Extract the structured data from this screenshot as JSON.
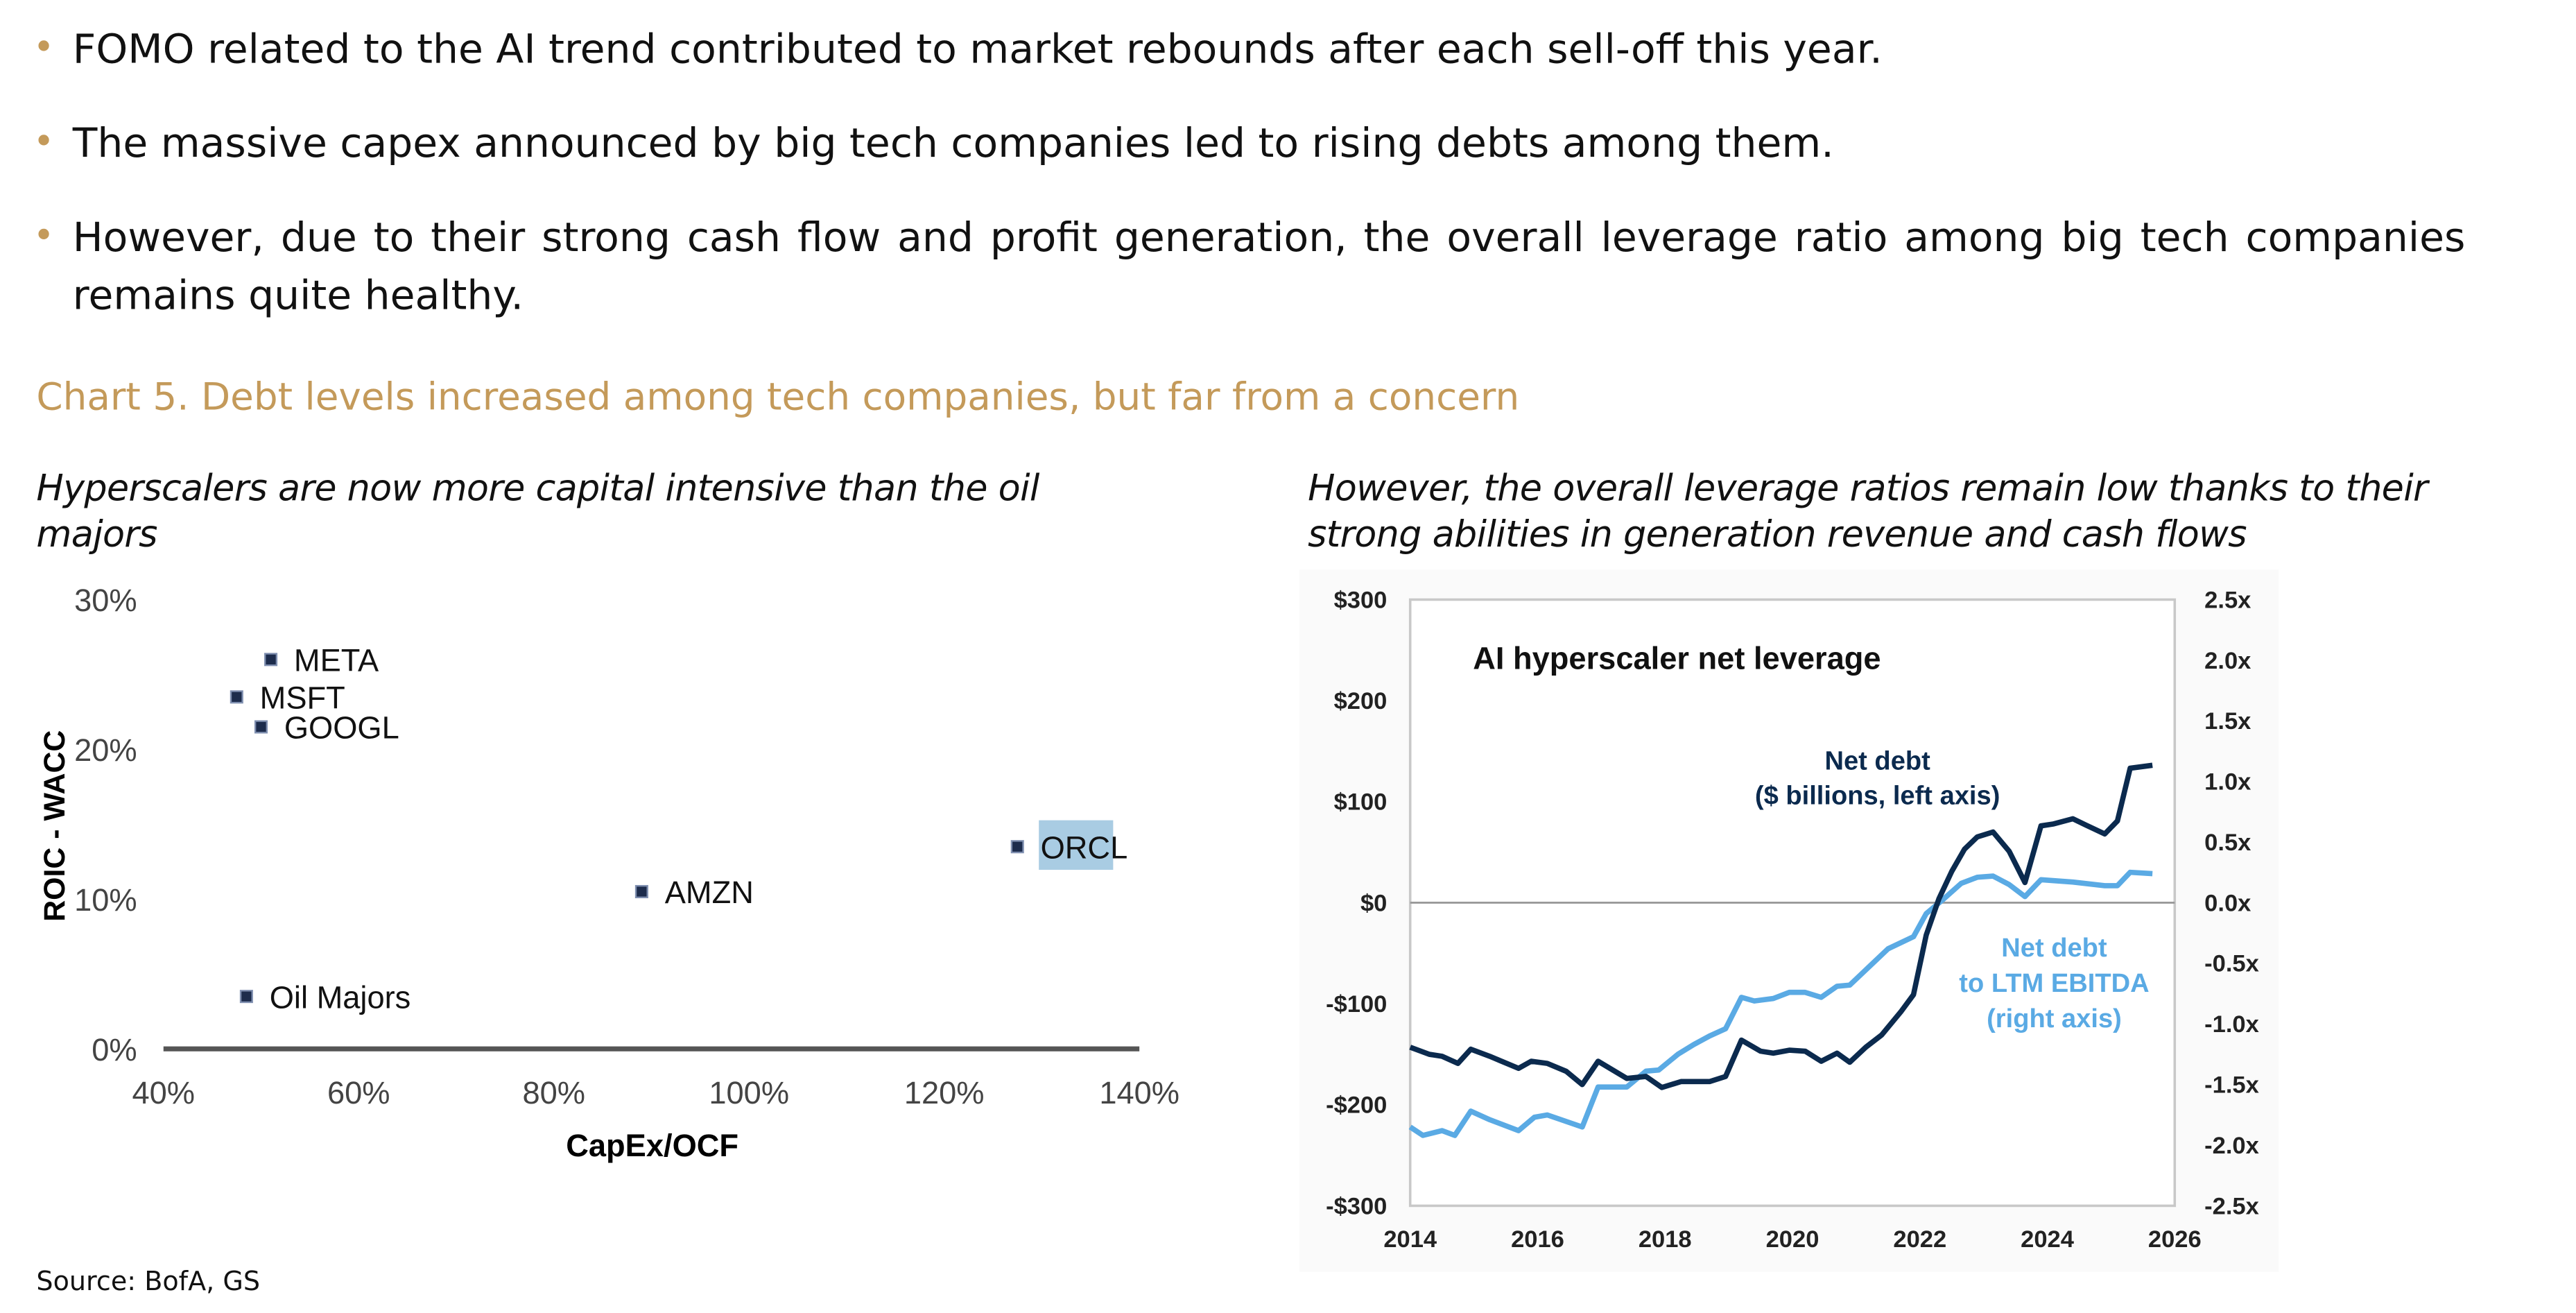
{
  "bullets": [
    "FOMO related to the AI trend contributed to market rebounds after each sell-off this year.",
    "The massive capex announced by big tech companies led to rising debts among them.",
    "However, due to their strong cash flow and profit generation, the overall leverage ratio among big tech companies remains quite healthy."
  ],
  "chart_title": "Chart 5. Debt levels increased among tech companies, but far from a concern",
  "left_subtitle": "Hyperscalers are now more capital intensive than the oil majors",
  "right_subtitle": "However, the overall leverage ratios remain low thanks to their strong abilities in generation revenue and cash flows",
  "source": "Source: BofA, GS",
  "colors": {
    "accent": "#c49a5a",
    "net_debt": "#0b2a4e",
    "leverage": "#5aaae4",
    "orcl_highlight": "#a9cce3"
  },
  "chart_data": [
    {
      "type": "scatter",
      "xlabel": "CapEx/OCF",
      "ylabel": "ROIC - WACC",
      "xlim": [
        40,
        140
      ],
      "ylim": [
        0,
        30
      ],
      "x_ticks": [
        "40%",
        "60%",
        "80%",
        "100%",
        "120%",
        "140%"
      ],
      "y_ticks": [
        "0%",
        "10%",
        "20%",
        "30%"
      ],
      "points": [
        {
          "label": "META",
          "x": 51,
          "y": 26
        },
        {
          "label": "MSFT",
          "x": 47.5,
          "y": 23.5
        },
        {
          "label": "GOOGL",
          "x": 50,
          "y": 21.5
        },
        {
          "label": "ORCL",
          "x": 127.5,
          "y": 13.5,
          "highlight": true
        },
        {
          "label": "AMZN",
          "x": 89,
          "y": 10.5
        },
        {
          "label": "Oil Majors",
          "x": 48.5,
          "y": 3.5
        }
      ]
    },
    {
      "type": "line",
      "title": "AI hyperscaler net leverage",
      "xlim": [
        2014,
        2026
      ],
      "ylim_left": [
        -300,
        300
      ],
      "ylim_right": [
        -2.5,
        2.5
      ],
      "x_ticks": [
        "2014",
        "2016",
        "2018",
        "2020",
        "2022",
        "2024",
        "2026"
      ],
      "y_ticks_left": [
        "$300",
        "$200",
        "$100",
        "$0",
        "-$100",
        "-$200",
        "-$300"
      ],
      "y_ticks_right": [
        "2.5x",
        "2.0x",
        "1.5x",
        "1.0x",
        "0.5x",
        "0.0x",
        "-0.5x",
        "-1.0x",
        "-1.5x",
        "-2.0x",
        "-2.5x"
      ],
      "series": [
        {
          "name": "Net debt ($ billions, left axis)",
          "label_lines": [
            "Net debt",
            "($ billions, left axis)"
          ],
          "axis": "left",
          "x": [
            2014.0,
            2014.3,
            2014.5,
            2014.75,
            2014.95,
            2015.25,
            2015.7,
            2015.9,
            2016.15,
            2016.45,
            2016.7,
            2016.95,
            2017.4,
            2017.7,
            2017.95,
            2018.25,
            2018.7,
            2018.95,
            2019.2,
            2019.5,
            2019.7,
            2019.95,
            2020.2,
            2020.45,
            2020.7,
            2020.9,
            2021.15,
            2021.4,
            2021.7,
            2021.9,
            2022.1,
            2022.3,
            2022.5,
            2022.7,
            2022.9,
            2023.15,
            2023.4,
            2023.65,
            2023.9,
            2024.1,
            2024.4,
            2024.6,
            2024.9,
            2025.1,
            2025.3,
            2025.65
          ],
          "y": [
            -143,
            -150,
            -152,
            -159,
            -145,
            -152,
            -164,
            -157,
            -159,
            -167,
            -180,
            -157,
            -174,
            -172,
            -183,
            -177,
            -177,
            -172,
            -136,
            -147,
            -149,
            -146,
            -147,
            -157,
            -149,
            -158,
            -143,
            -131,
            -108,
            -91,
            -32,
            4,
            31,
            53,
            65,
            70,
            51,
            20,
            76,
            78,
            83,
            77,
            68,
            81,
            133,
            136
          ]
        },
        {
          "name": "Net debt to LTM EBITDA (right axis)",
          "label_lines": [
            "Net debt",
            "to LTM EBITDA",
            "(right axis)"
          ],
          "axis": "right",
          "x": [
            2014.0,
            2014.2,
            2014.5,
            2014.7,
            2014.95,
            2015.25,
            2015.7,
            2015.95,
            2016.15,
            2016.7,
            2016.95,
            2017.4,
            2017.7,
            2017.9,
            2018.2,
            2018.45,
            2018.7,
            2018.95,
            2019.2,
            2019.4,
            2019.7,
            2019.95,
            2020.2,
            2020.45,
            2020.7,
            2020.9,
            2021.2,
            2021.5,
            2021.9,
            2022.1,
            2022.35,
            2022.65,
            2022.9,
            2023.15,
            2023.4,
            2023.65,
            2023.9,
            2024.4,
            2024.9,
            2025.1,
            2025.3,
            2025.65
          ],
          "y": [
            -1.85,
            -1.92,
            -1.88,
            -1.92,
            -1.72,
            -1.79,
            -1.88,
            -1.77,
            -1.75,
            -1.85,
            -1.52,
            -1.52,
            -1.39,
            -1.38,
            -1.25,
            -1.17,
            -1.1,
            -1.04,
            -0.78,
            -0.81,
            -0.79,
            -0.74,
            -0.74,
            -0.78,
            -0.69,
            -0.68,
            -0.53,
            -0.38,
            -0.28,
            -0.09,
            0.02,
            0.16,
            0.21,
            0.22,
            0.15,
            0.05,
            0.19,
            0.17,
            0.14,
            0.14,
            0.25,
            0.24
          ]
        }
      ]
    }
  ]
}
